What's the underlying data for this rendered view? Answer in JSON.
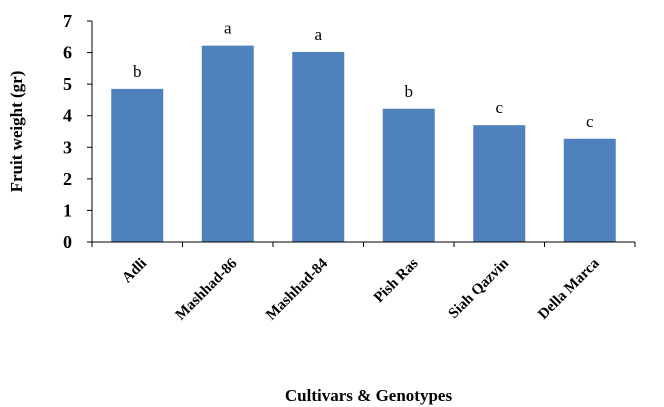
{
  "chart_data": {
    "type": "bar",
    "categories": [
      "Adli",
      "Mashhad-86",
      "Mashhad-84",
      "Pish Ras",
      "Siah Qazvin",
      "Della Marca"
    ],
    "values": [
      4.85,
      6.22,
      6.02,
      4.22,
      3.7,
      3.27
    ],
    "significance_letters": [
      "b",
      "a",
      "a",
      "b",
      "c",
      "c"
    ],
    "xlabel": "Cultivars & Genotypes",
    "ylabel": "Fruit weight (gr)",
    "ylim": [
      0,
      7
    ],
    "yticks": [
      "0",
      "1",
      "2",
      "3",
      "4",
      "5",
      "6",
      "7"
    ],
    "grid": false,
    "legend": "none",
    "bar_color": "#4f81bd"
  }
}
